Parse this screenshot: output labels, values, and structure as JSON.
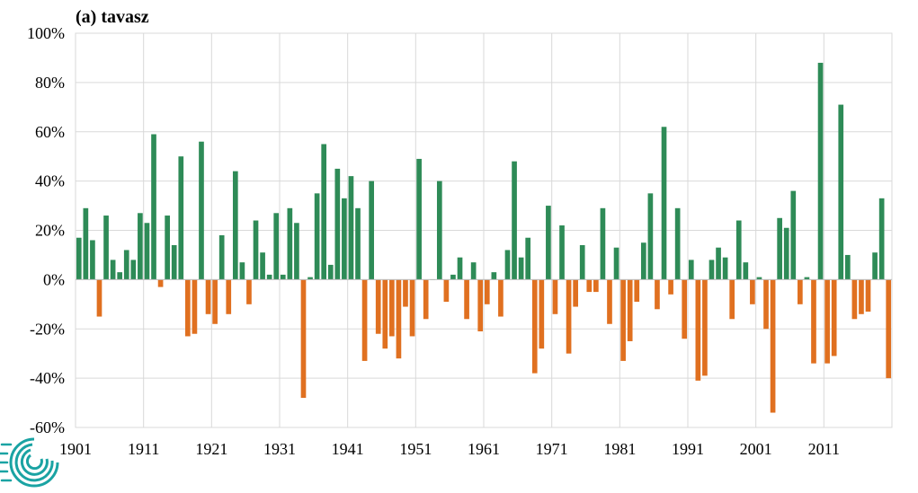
{
  "colors": {
    "positive": "#2e8b57",
    "negative": "#e07020",
    "logo": "#1aa3a3"
  },
  "logo": {
    "icon": "spiral-logo-icon"
  },
  "chart_data": {
    "type": "bar",
    "title": "(a) tavasz",
    "xlabel": "",
    "ylabel": "",
    "ylim": [
      -60,
      100
    ],
    "yticks": [
      100,
      80,
      60,
      40,
      20,
      0,
      -20,
      -40,
      -60
    ],
    "ytick_labels": [
      "100%",
      "80%",
      "60%",
      "40%",
      "20%",
      "0%",
      "-20%",
      "-40%",
      "-60%"
    ],
    "xtick_labels": [
      "1901",
      "1911",
      "1921",
      "1931",
      "1941",
      "1951",
      "1961",
      "1971",
      "1981",
      "1991",
      "2001",
      "2011"
    ],
    "grid": true,
    "legend": "none",
    "x": [
      1901,
      1902,
      1903,
      1904,
      1905,
      1906,
      1907,
      1908,
      1909,
      1910,
      1911,
      1912,
      1913,
      1914,
      1915,
      1916,
      1917,
      1918,
      1919,
      1920,
      1921,
      1922,
      1923,
      1924,
      1925,
      1926,
      1927,
      1928,
      1929,
      1930,
      1931,
      1932,
      1933,
      1934,
      1935,
      1936,
      1937,
      1938,
      1939,
      1940,
      1941,
      1942,
      1943,
      1944,
      1945,
      1946,
      1947,
      1948,
      1949,
      1950,
      1951,
      1952,
      1953,
      1954,
      1955,
      1956,
      1957,
      1958,
      1959,
      1960,
      1961,
      1962,
      1963,
      1964,
      1965,
      1966,
      1967,
      1968,
      1969,
      1970,
      1971,
      1972,
      1973,
      1974,
      1975,
      1976,
      1977,
      1978,
      1979,
      1980,
      1981,
      1982,
      1983,
      1984,
      1985,
      1986,
      1987,
      1988,
      1989,
      1990,
      1991,
      1992,
      1993,
      1994,
      1995,
      1996,
      1997,
      1998,
      1999,
      2000,
      2001,
      2002,
      2003,
      2004,
      2005,
      2006,
      2007,
      2008,
      2009,
      2010,
      2011,
      2012,
      2013,
      2014,
      2015,
      2016,
      2017,
      2018,
      2019,
      2020
    ],
    "values": [
      17,
      29,
      16,
      -15,
      26,
      8,
      3,
      12,
      8,
      27,
      23,
      59,
      -3,
      26,
      14,
      50,
      -23,
      -22,
      56,
      -14,
      -18,
      18,
      -14,
      44,
      7,
      -10,
      24,
      11,
      2,
      27,
      2,
      29,
      23,
      -48,
      1,
      35,
      55,
      6,
      45,
      33,
      42,
      29,
      -33,
      40,
      -22,
      -28,
      -23,
      -32,
      -11,
      -23,
      49,
      -16,
      0,
      40,
      -9,
      2,
      9,
      -16,
      7,
      -21,
      -10,
      3,
      -15,
      12,
      48,
      9,
      17,
      -38,
      -28,
      30,
      -14,
      22,
      -30,
      -11,
      14,
      -5,
      -5,
      29,
      -18,
      13,
      -33,
      -25,
      -9,
      15,
      35,
      -12,
      62,
      -6,
      29,
      -24,
      8,
      -41,
      -39,
      8,
      13,
      9,
      -16,
      24,
      7,
      -10,
      1,
      -20,
      -54,
      25,
      21,
      36,
      -10,
      1,
      -34,
      88,
      -34,
      -31,
      71,
      10,
      -16,
      -14,
      -13,
      11,
      33,
      -40
    ]
  }
}
